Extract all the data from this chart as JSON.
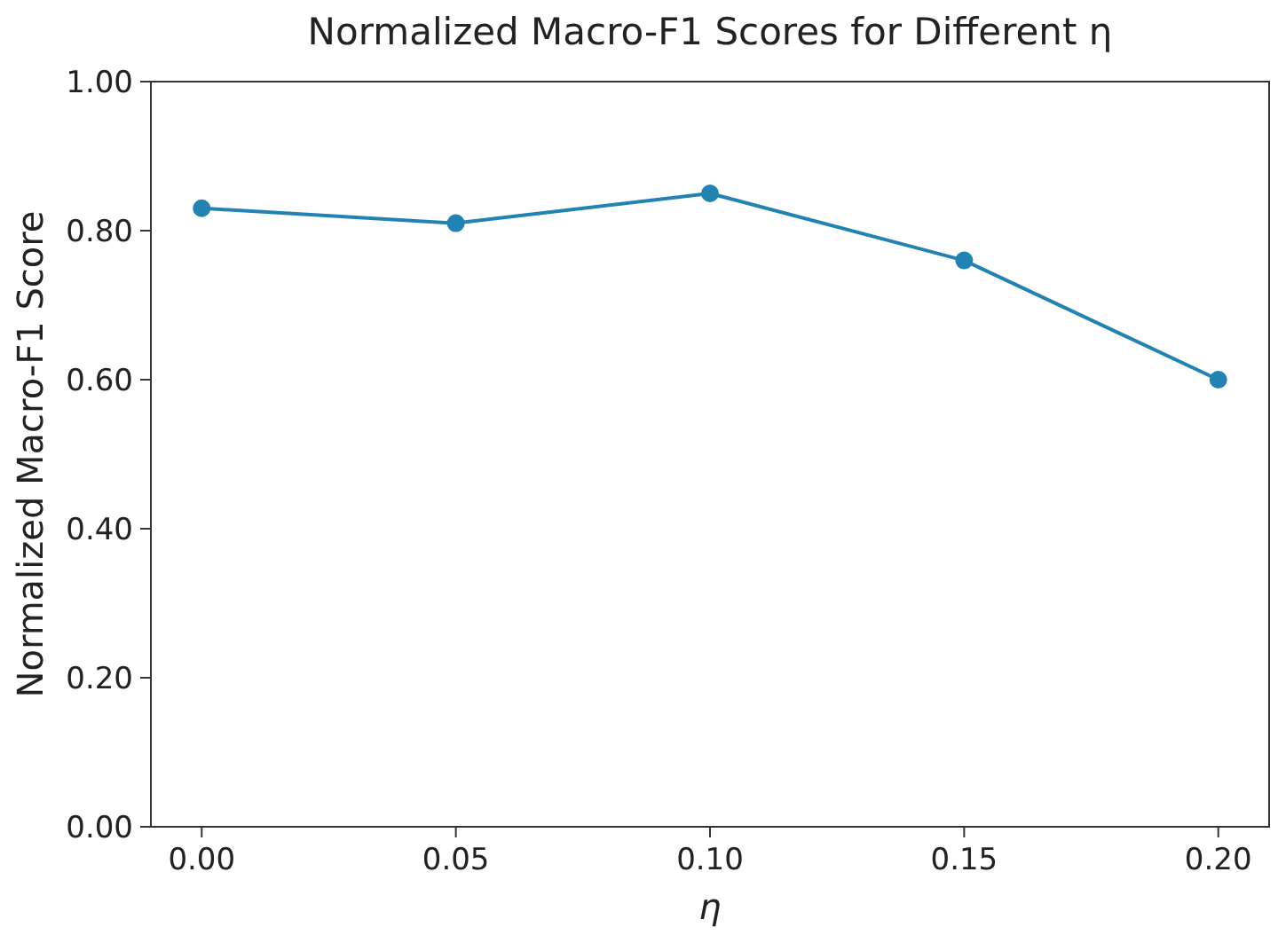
{
  "chart_data": {
    "type": "line",
    "title": "Normalized Macro-F1 Scores for Different η",
    "xlabel": "η",
    "ylabel": "Normalized Macro-F1 Score",
    "x": [
      0,
      0.05,
      0.1,
      0.15,
      0.2
    ],
    "series": [
      {
        "color": "#2283b3",
        "values": [
          0.83,
          0.81,
          0.85,
          0.76,
          0.6
        ]
      }
    ],
    "xlim": [
      -0.01,
      0.21
    ],
    "ylim": [
      0,
      1
    ],
    "xticks": [
      {
        "value": 0,
        "label": "0.00"
      },
      {
        "value": 0.05,
        "label": "0.05"
      },
      {
        "value": 0.1,
        "label": "0.10"
      },
      {
        "value": 0.15,
        "label": "0.15"
      },
      {
        "value": 0.2,
        "label": "0.20"
      }
    ],
    "yticks": [
      {
        "value": 0,
        "label": "0.00"
      },
      {
        "value": 0.2,
        "label": "0.20"
      },
      {
        "value": 0.4,
        "label": "0.40"
      },
      {
        "value": 0.6,
        "label": "0.60"
      },
      {
        "value": 0.8,
        "label": "0.80"
      },
      {
        "value": 1,
        "label": "1.00"
      }
    ],
    "grid": false,
    "marker": "circle",
    "line_style": "solid"
  }
}
